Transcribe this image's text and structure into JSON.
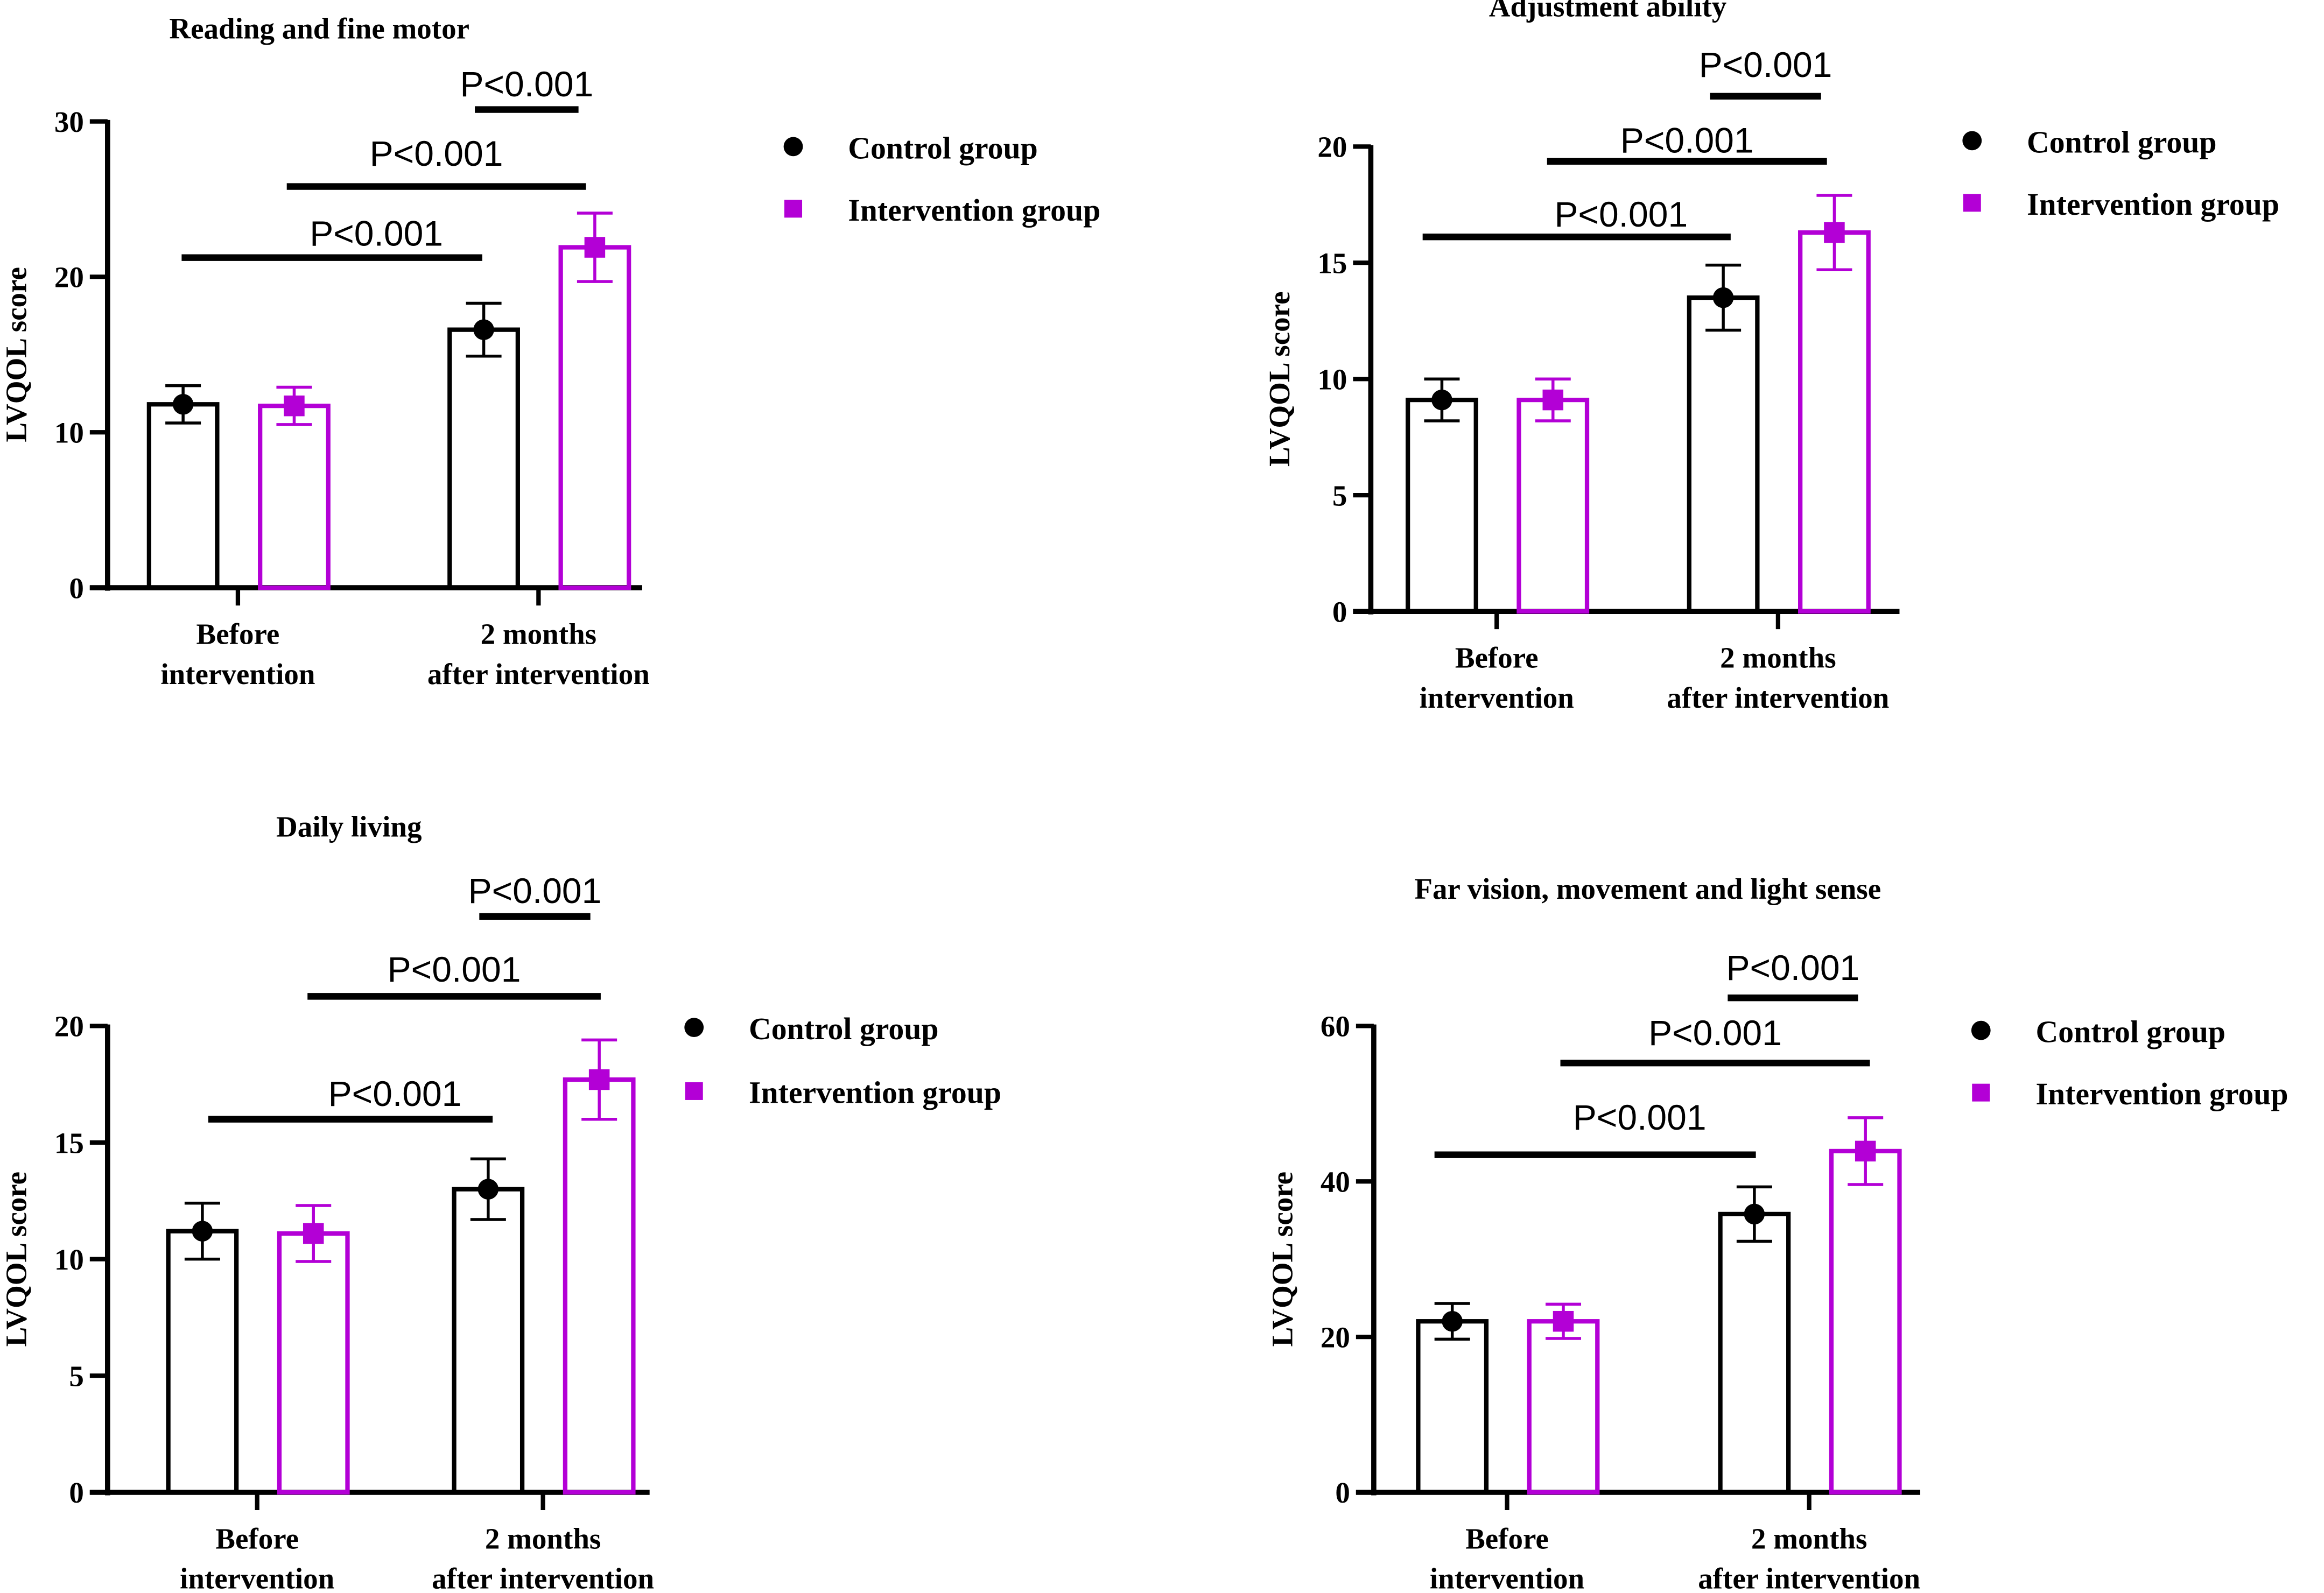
{
  "colors": {
    "control": "#000000",
    "intervention": "#b300d6"
  },
  "chart_data": [
    {
      "type": "bar",
      "title": "Reading and fine motor",
      "ylabel": "LVQOL score",
      "ylim": [
        0,
        30
      ],
      "yticks": [
        "0",
        "10",
        "20",
        "30"
      ],
      "categories": [
        [
          "Before",
          "intervention"
        ],
        [
          "2 months",
          "after intervention"
        ]
      ],
      "legend": {
        "placement": "right",
        "entries": [
          "Control group",
          "Intervention group"
        ]
      },
      "series": [
        {
          "name": "Control group",
          "values": [
            11.8,
            16.6
          ],
          "errors": [
            1.2,
            1.7
          ]
        },
        {
          "name": "Intervention group",
          "values": [
            11.7,
            21.9
          ],
          "errors": [
            1.2,
            2.2
          ]
        }
      ],
      "annotations": [
        "P<0.001",
        "P<0.001",
        "P<0.001"
      ]
    },
    {
      "type": "bar",
      "title": "Adjustment ability",
      "ylabel": "LVQOL score",
      "ylim": [
        0,
        20
      ],
      "yticks": [
        "0",
        "5",
        "10",
        "15",
        "20"
      ],
      "categories": [
        [
          "Before",
          "intervention"
        ],
        [
          "2 months",
          "after intervention"
        ]
      ],
      "legend": {
        "placement": "right",
        "entries": [
          "Control group",
          "Intervention group"
        ]
      },
      "series": [
        {
          "name": "Control group",
          "values": [
            9.1,
            13.5
          ],
          "errors": [
            0.9,
            1.4
          ]
        },
        {
          "name": "Intervention group",
          "values": [
            9.1,
            16.3
          ],
          "errors": [
            0.9,
            1.6
          ]
        }
      ],
      "annotations": [
        "P<0.001",
        "P<0.001",
        "P<0.001"
      ]
    },
    {
      "type": "bar",
      "title": "Daily living",
      "ylabel": "LVQOL score",
      "ylim": [
        0,
        20
      ],
      "yticks": [
        "0",
        "5",
        "10",
        "15",
        "20"
      ],
      "categories": [
        [
          "Before",
          "intervention"
        ],
        [
          "2 months",
          "after intervention"
        ]
      ],
      "legend": {
        "placement": "right",
        "entries": [
          "Control group",
          "Intervention group"
        ]
      },
      "series": [
        {
          "name": "Control group",
          "values": [
            11.2,
            13.0
          ],
          "errors": [
            1.2,
            1.3
          ]
        },
        {
          "name": "Intervention group",
          "values": [
            11.1,
            17.7
          ],
          "errors": [
            1.2,
            1.7
          ]
        }
      ],
      "annotations": [
        "P<0.001",
        "P<0.001",
        "P<0.001"
      ]
    },
    {
      "type": "bar",
      "title": "Far vision, movement and light sense",
      "ylabel": "LVQOL score",
      "ylim": [
        0,
        60
      ],
      "yticks": [
        "0",
        "20",
        "40",
        "60"
      ],
      "categories": [
        [
          "Before",
          "intervention"
        ],
        [
          "2 months",
          "after intervention"
        ]
      ],
      "legend": {
        "placement": "right",
        "entries": [
          "Control group",
          "Intervention group"
        ]
      },
      "series": [
        {
          "name": "Control group",
          "values": [
            22.0,
            35.8
          ],
          "errors": [
            2.3,
            3.5
          ]
        },
        {
          "name": "Intervention group",
          "values": [
            22.0,
            43.9
          ],
          "errors": [
            2.2,
            4.3
          ]
        }
      ],
      "annotations": [
        "P<0.001",
        "P<0.001",
        "P<0.001"
      ]
    }
  ]
}
